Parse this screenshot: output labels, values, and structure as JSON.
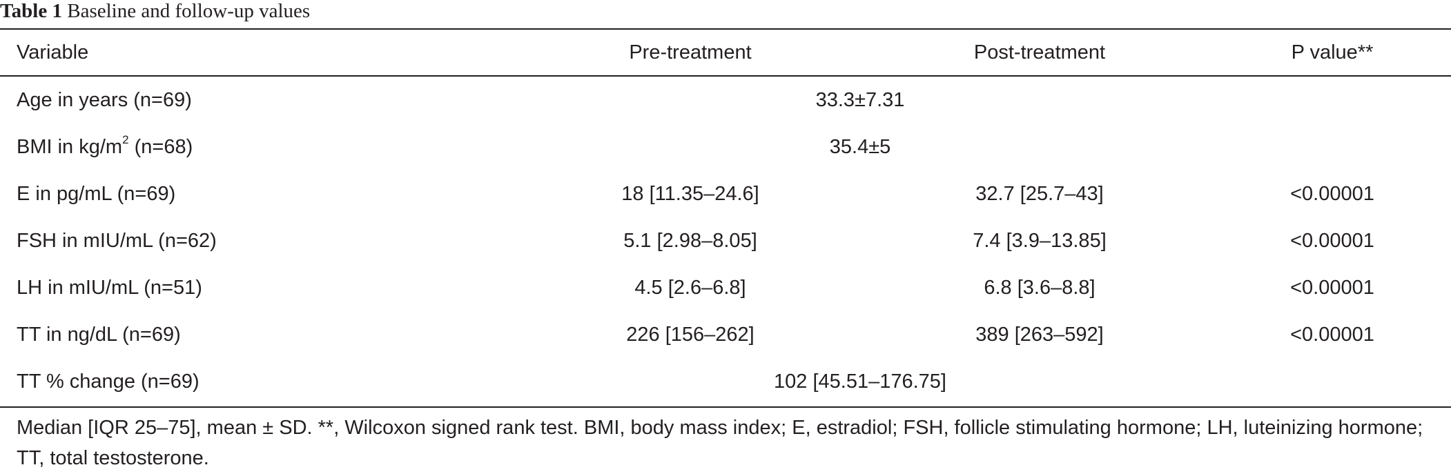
{
  "caption": {
    "label": "Table 1",
    "title": "Baseline and follow-up values"
  },
  "table": {
    "headers": {
      "variable": "Variable",
      "pre": "Pre-treatment",
      "post": "Post-treatment",
      "p": "P value**"
    },
    "rows": [
      {
        "variable": "Age in years (n=69)",
        "span_value": "33.3±7.31"
      },
      {
        "variable_main": "BMI in kg/m",
        "variable_sup": "2",
        "variable_tail": " (n=68)",
        "span_value": "35.4±5"
      },
      {
        "variable": "E in pg/mL (n=69)",
        "pre": "18 [11.35–24.6]",
        "post": "32.7 [25.7–43]",
        "p": "<0.00001"
      },
      {
        "variable": "FSH in mIU/mL (n=62)",
        "pre": "5.1 [2.98–8.05]",
        "post": "7.4 [3.9–13.85]",
        "p": "<0.00001"
      },
      {
        "variable": "LH in mIU/mL (n=51)",
        "pre": "4.5 [2.6–6.8]",
        "post": "6.8 [3.6–8.8]",
        "p": "<0.00001"
      },
      {
        "variable": "TT in ng/dL (n=69)",
        "pre": "226 [156–262]",
        "post": "389 [263–592]",
        "p": "<0.00001"
      },
      {
        "variable": "TT % change (n=69)",
        "span_value": "102 [45.51–176.75]"
      }
    ]
  },
  "footnote": "Median [IQR 25–75], mean ± SD. **, Wilcoxon signed rank test. BMI, body mass index; E, estradiol; FSH, follicle stimulating hormone; LH, luteinizing hormone; TT, total testosterone."
}
